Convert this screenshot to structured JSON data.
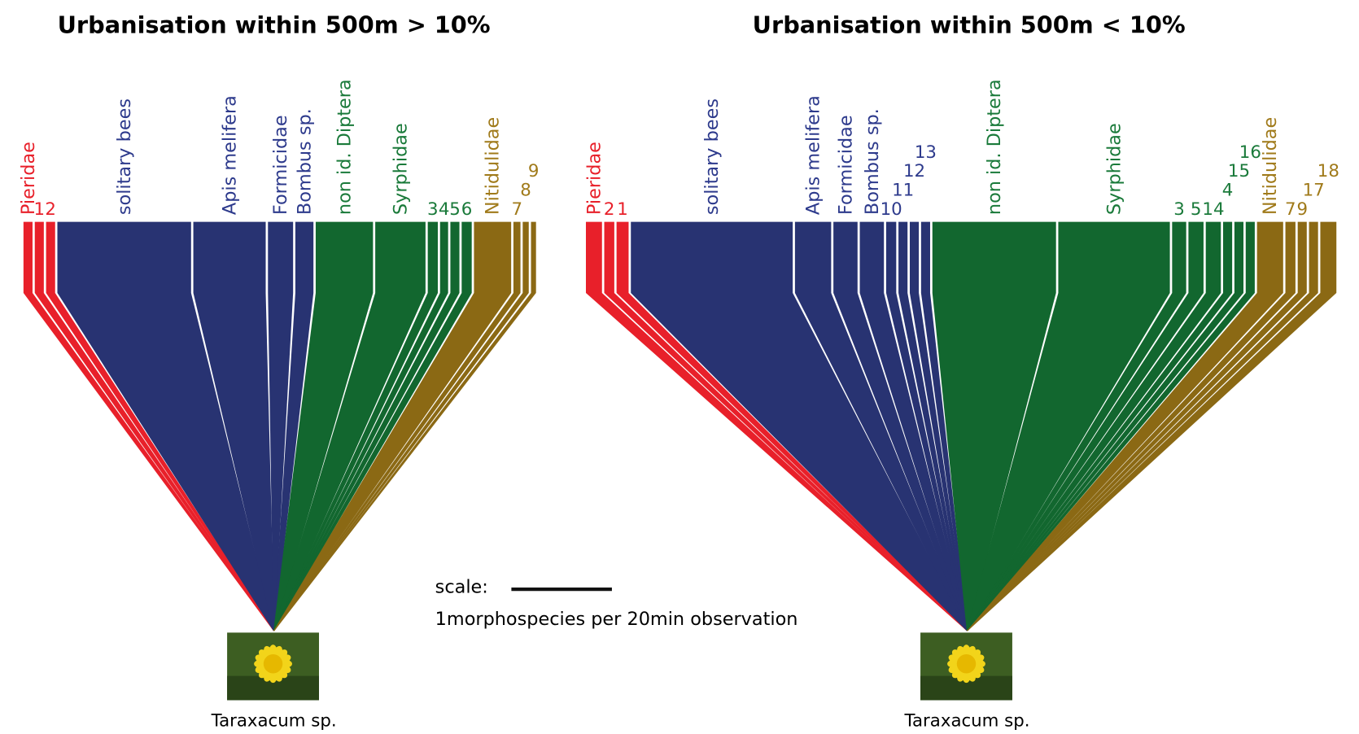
{
  "panels": [
    {
      "title": "Urbanisation within 500m > 10%",
      "plant": "Taraxacum sp.",
      "segments": [
        {
          "label": "Pieridae",
          "color": "#e8202a",
          "value": 0.09
        },
        {
          "label": "1",
          "color": "#e8202a",
          "value": 0.09
        },
        {
          "label": "2",
          "color": "#e8202a",
          "value": 0.09
        },
        {
          "label": "solitary bees",
          "color": "#283372",
          "value": 1.33
        },
        {
          "label": "Apis melifera",
          "color": "#283372",
          "value": 0.72
        },
        {
          "label": "Formicidae",
          "color": "#283372",
          "value": 0.25
        },
        {
          "label": "Bombus sp.",
          "color": "#283372",
          "value": 0.18
        },
        {
          "label": "non id. Diptera",
          "color": "#12672f",
          "value": 0.57
        },
        {
          "label": "Syrphidae",
          "color": "#12672f",
          "value": 0.5
        },
        {
          "label": "3",
          "color": "#12672f",
          "value": 0.1
        },
        {
          "label": "4",
          "color": "#12672f",
          "value": 0.08
        },
        {
          "label": "5",
          "color": "#12672f",
          "value": 0.09
        },
        {
          "label": "6",
          "color": "#12672f",
          "value": 0.1
        },
        {
          "label": "Nitidulidae",
          "color": "#8b6914",
          "value": 0.37
        },
        {
          "label": "7",
          "color": "#8b6914",
          "value": 0.07
        },
        {
          "label": "8",
          "color": "#8b6914",
          "value": 0.06
        },
        {
          "label": "9",
          "color": "#8b6914",
          "value": 0.05
        }
      ]
    },
    {
      "title": "Urbanisation within 500m < 10%",
      "plant": "Taraxacum sp.",
      "segments": [
        {
          "label": "Pieridae",
          "color": "#e8202a",
          "value": 0.16
        },
        {
          "label": "2",
          "color": "#e8202a",
          "value": 0.1
        },
        {
          "label": "1",
          "color": "#e8202a",
          "value": 0.12
        },
        {
          "label": "solitary bees",
          "color": "#283372",
          "value": 1.61
        },
        {
          "label": "Apis melifera",
          "color": "#283372",
          "value": 0.36
        },
        {
          "label": "Formicidae",
          "color": "#283372",
          "value": 0.24
        },
        {
          "label": "Bombus sp.",
          "color": "#283372",
          "value": 0.24
        },
        {
          "label": "10",
          "color": "#283372",
          "value": 0.1
        },
        {
          "label": "11",
          "color": "#283372",
          "value": 0.09
        },
        {
          "label": "12",
          "color": "#283372",
          "value": 0.09
        },
        {
          "label": "13",
          "color": "#283372",
          "value": 0.09
        },
        {
          "label": "non id. Diptera",
          "color": "#12672f",
          "value": 1.23
        },
        {
          "label": "Syrphidae",
          "color": "#12672f",
          "value": 1.11
        },
        {
          "label": "3",
          "color": "#12672f",
          "value": 0.14
        },
        {
          "label": "5",
          "color": "#12672f",
          "value": 0.15
        },
        {
          "label": "14",
          "color": "#12672f",
          "value": 0.15
        },
        {
          "label": "4",
          "color": "#12672f",
          "value": 0.09
        },
        {
          "label": "15",
          "color": "#12672f",
          "value": 0.09
        },
        {
          "label": "16",
          "color": "#12672f",
          "value": 0.09
        },
        {
          "label": "Nitidulidae",
          "color": "#8b6914",
          "value": 0.26
        },
        {
          "label": "7",
          "color": "#8b6914",
          "value": 0.1
        },
        {
          "label": "9",
          "color": "#8b6914",
          "value": 0.09
        },
        {
          "label": "17",
          "color": "#8b6914",
          "value": 0.09
        },
        {
          "label": "18",
          "color": "#8b6914",
          "value": 0.16
        }
      ]
    }
  ],
  "scale": {
    "label": "scale:",
    "unit": "1morphospecies per 20min observation"
  }
}
